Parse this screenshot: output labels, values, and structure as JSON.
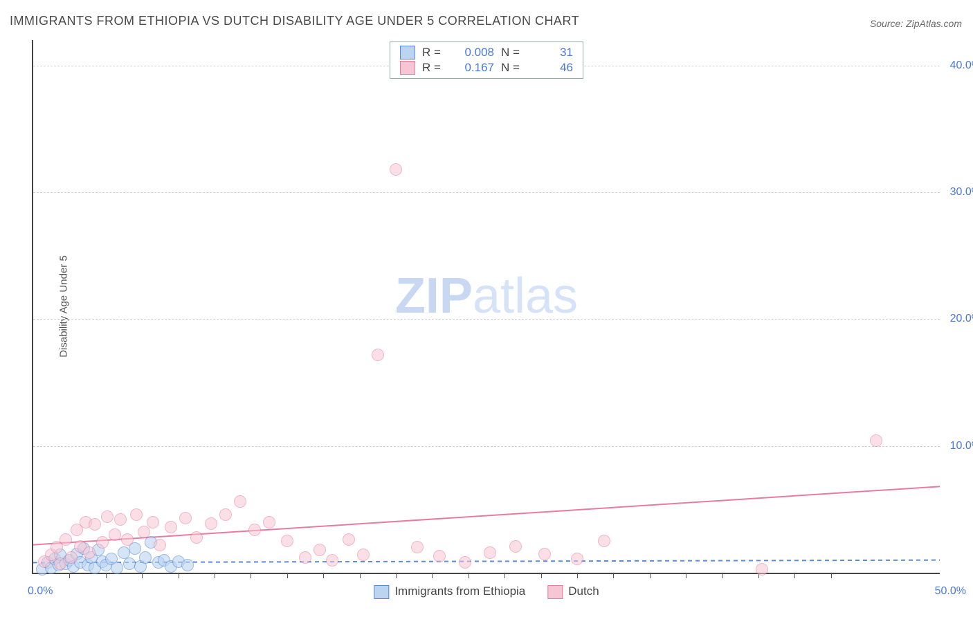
{
  "title": "IMMIGRANTS FROM ETHIOPIA VS DUTCH DISABILITY AGE UNDER 5 CORRELATION CHART",
  "source": "Source: ZipAtlas.com",
  "ylabel": "Disability Age Under 5",
  "watermark_bold": "ZIP",
  "watermark_light": "atlas",
  "chart": {
    "type": "scatter",
    "xlim": [
      0,
      50
    ],
    "ylim": [
      0,
      42
    ],
    "x_origin_label": "0.0%",
    "x_max_label": "50.0%",
    "yticks": [
      {
        "v": 10,
        "label": "10.0%"
      },
      {
        "v": 20,
        "label": "20.0%"
      },
      {
        "v": 30,
        "label": "30.0%"
      },
      {
        "v": 40,
        "label": "40.0%"
      }
    ],
    "xticks_minor": [
      2,
      4,
      6,
      8,
      10,
      12,
      14,
      16,
      18,
      20,
      22,
      24,
      26,
      28,
      30,
      32,
      34,
      36,
      38,
      40,
      42,
      44
    ],
    "background_color": "#ffffff",
    "grid_color": "#cfcfcf",
    "marker_radius": 8,
    "marker_stroke_width": 1.5,
    "trend_line_width": 2
  },
  "series": [
    {
      "name": "Immigrants from Ethiopia",
      "fill": "#bcd4f0",
      "stroke": "#5a8bd8",
      "fill_opacity": 0.6,
      "R": "0.008",
      "N": "31",
      "trend": {
        "y0": 0.8,
        "y1": 1.0,
        "dash": "6,5"
      },
      "points": [
        [
          0.5,
          0.3
        ],
        [
          0.8,
          0.8
        ],
        [
          1.0,
          0.4
        ],
        [
          1.2,
          1.1
        ],
        [
          1.4,
          0.6
        ],
        [
          1.5,
          1.4
        ],
        [
          1.8,
          0.7
        ],
        [
          2.0,
          1.0
        ],
        [
          2.2,
          0.5
        ],
        [
          2.4,
          1.5
        ],
        [
          2.6,
          0.8
        ],
        [
          2.8,
          1.9
        ],
        [
          3.0,
          0.6
        ],
        [
          3.2,
          1.2
        ],
        [
          3.4,
          0.4
        ],
        [
          3.6,
          1.8
        ],
        [
          3.8,
          0.9
        ],
        [
          4.0,
          0.6
        ],
        [
          4.3,
          1.1
        ],
        [
          4.6,
          0.4
        ],
        [
          5.0,
          1.6
        ],
        [
          5.3,
          0.7
        ],
        [
          5.6,
          1.9
        ],
        [
          5.9,
          0.5
        ],
        [
          6.2,
          1.2
        ],
        [
          6.5,
          2.4
        ],
        [
          6.9,
          0.8
        ],
        [
          7.2,
          1.0
        ],
        [
          7.6,
          0.5
        ],
        [
          8.0,
          0.9
        ],
        [
          8.5,
          0.6
        ]
      ]
    },
    {
      "name": "Dutch",
      "fill": "#f6c6d4",
      "stroke": "#e87ba0",
      "fill_opacity": 0.55,
      "R": "0.167",
      "N": "46",
      "trend": {
        "y0": 2.2,
        "y1": 6.8,
        "dash": null
      },
      "points": [
        [
          0.6,
          0.9
        ],
        [
          1.0,
          1.4
        ],
        [
          1.3,
          2.0
        ],
        [
          1.5,
          0.7
        ],
        [
          1.8,
          2.6
        ],
        [
          2.1,
          1.2
        ],
        [
          2.4,
          3.4
        ],
        [
          2.6,
          2.1
        ],
        [
          2.9,
          4.0
        ],
        [
          3.1,
          1.6
        ],
        [
          3.4,
          3.8
        ],
        [
          3.8,
          2.4
        ],
        [
          4.1,
          4.4
        ],
        [
          4.5,
          3.0
        ],
        [
          4.8,
          4.2
        ],
        [
          5.2,
          2.6
        ],
        [
          5.7,
          4.6
        ],
        [
          6.1,
          3.2
        ],
        [
          6.6,
          4.0
        ],
        [
          7.0,
          2.2
        ],
        [
          7.6,
          3.6
        ],
        [
          8.4,
          4.3
        ],
        [
          9.0,
          2.8
        ],
        [
          9.8,
          3.9
        ],
        [
          10.6,
          4.6
        ],
        [
          11.4,
          5.6
        ],
        [
          12.2,
          3.4
        ],
        [
          13.0,
          4.0
        ],
        [
          14.0,
          2.5
        ],
        [
          15.0,
          1.2
        ],
        [
          15.8,
          1.8
        ],
        [
          16.5,
          1.0
        ],
        [
          17.4,
          2.6
        ],
        [
          18.2,
          1.4
        ],
        [
          19.0,
          17.2
        ],
        [
          20.0,
          31.8
        ],
        [
          21.2,
          2.0
        ],
        [
          22.4,
          1.3
        ],
        [
          23.8,
          0.8
        ],
        [
          25.2,
          1.6
        ],
        [
          26.6,
          2.1
        ],
        [
          28.2,
          1.5
        ],
        [
          30.0,
          1.1
        ],
        [
          31.5,
          2.5
        ],
        [
          40.2,
          0.3
        ],
        [
          46.5,
          10.4
        ]
      ]
    }
  ],
  "legend_bottom": [
    {
      "label": "Immigrants from Ethiopia",
      "series": 0
    },
    {
      "label": "Dutch",
      "series": 1
    }
  ]
}
